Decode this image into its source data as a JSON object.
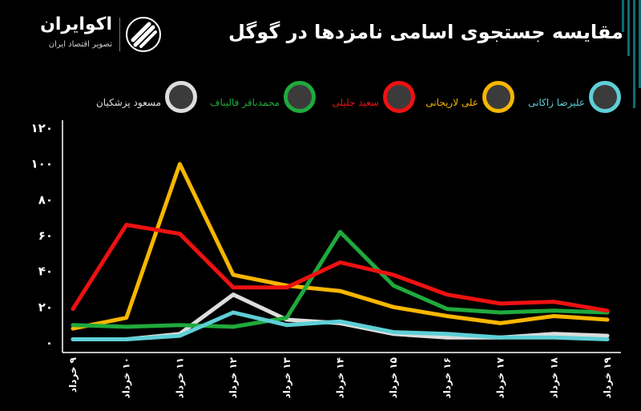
{
  "header": {
    "title": "مقایسه جستجوی اسامی نامزدها در گوگل",
    "brand_name": "اکوایران",
    "brand_tagline": "تصویر اقتصاد ایران"
  },
  "colors": {
    "background": "#000000",
    "zakani": "#5ecfd6",
    "larijani": "#f7b600",
    "jalili": "#ee1111",
    "ghalibaf": "#1faa3c",
    "pezeshkian": "#dddddd"
  },
  "legend": [
    {
      "key": "zakani",
      "label": "علیرضا زاکانی",
      "color": "#5ecfd6",
      "icon": "candidate-photo"
    },
    {
      "key": "larijani",
      "label": "علی لاریجانی",
      "color": "#f7b600",
      "icon": "candidate-photo"
    },
    {
      "key": "jalili",
      "label": "سعید جلیلی",
      "color": "#ee1111",
      "icon": "candidate-photo"
    },
    {
      "key": "ghalibaf",
      "label": "محمدباقر قالیباف",
      "color": "#1faa3c",
      "icon": "candidate-photo"
    },
    {
      "key": "pezeshkian",
      "label": "مسعود پزشکیان",
      "color": "#dddddd",
      "icon": "candidate-photo"
    }
  ],
  "chart_data": {
    "type": "line",
    "title": "مقایسه جستجوی اسامی نامزدها در گوگل",
    "x": [
      "۹ خرداد",
      "۱۰ خرداد",
      "۱۱ خرداد",
      "۱۲ خرداد",
      "۱۳ خرداد",
      "۱۴ خرداد",
      "۱۵ خرداد",
      "۱۶ خرداد",
      "۱۷ خرداد",
      "۱۸ خرداد",
      "۱۹ خرداد"
    ],
    "ylim": [
      0,
      120
    ],
    "yticks": [
      "۰",
      "۲۰",
      "۴۰",
      "۶۰",
      "۸۰",
      "۱۰۰",
      "۱۲۰"
    ],
    "grid": false,
    "legend_position": "top",
    "series": [
      {
        "name": "مسعود پزشکیان",
        "color": "#dddddd",
        "values": [
          2,
          2,
          5,
          27,
          13,
          11,
          5,
          3,
          3,
          5,
          4
        ]
      },
      {
        "name": "علی لاریجانی",
        "color": "#f7b600",
        "values": [
          8,
          14,
          100,
          38,
          32,
          29,
          20,
          15,
          11,
          15,
          13
        ]
      },
      {
        "name": "محمدباقر قالیباف",
        "color": "#1faa3c",
        "values": [
          10,
          9,
          10,
          9,
          14,
          62,
          32,
          19,
          17,
          18,
          17
        ]
      },
      {
        "name": "سعید جلیلی",
        "color": "#ee1111",
        "values": [
          19,
          66,
          61,
          31,
          31,
          45,
          38,
          27,
          22,
          23,
          18
        ]
      },
      {
        "name": "علیرضا زاکانی",
        "color": "#5ecfd6",
        "values": [
          2,
          2,
          4,
          17,
          10,
          12,
          6,
          5,
          3,
          3,
          2
        ]
      }
    ]
  }
}
